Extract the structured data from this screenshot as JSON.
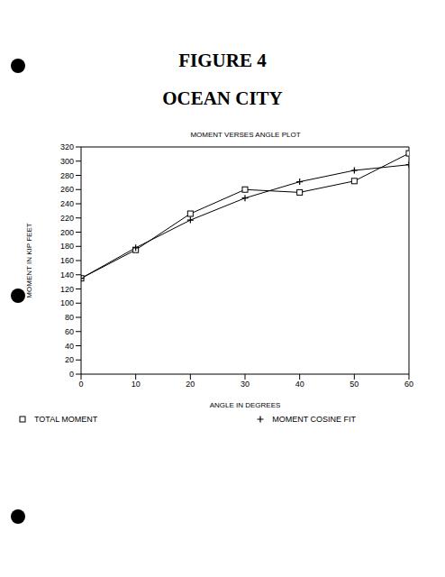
{
  "header": {
    "title": "FIGURE 4",
    "subtitle": "OCEAN CITY"
  },
  "chart_data": {
    "type": "line",
    "title": "MOMENT VERSES ANGLE PLOT",
    "x_label": "ANGLE IN DEGREES",
    "y_label": "MOMENT IN KIP FEET",
    "x": [
      0,
      10,
      20,
      30,
      40,
      50,
      60
    ],
    "series": [
      {
        "name": "TOTAL MOMENT",
        "color": "#000000",
        "marker": "square",
        "values": [
          135,
          175,
          226,
          260,
          256,
          272,
          311
        ]
      },
      {
        "name": "MOMENT COSINE FIT",
        "color": "#000000",
        "marker": "plus",
        "values": [
          135,
          178,
          217,
          248,
          271,
          287,
          295
        ]
      }
    ],
    "xlim": [
      0,
      60
    ],
    "xticks": [
      0,
      10,
      20,
      30,
      40,
      50,
      60
    ],
    "ylim": [
      0,
      320
    ],
    "yticks": [
      0,
      20,
      40,
      60,
      80,
      100,
      120,
      140,
      160,
      180,
      200,
      220,
      240,
      260,
      280,
      300,
      320
    ],
    "grid": false,
    "legend": "bottom"
  }
}
